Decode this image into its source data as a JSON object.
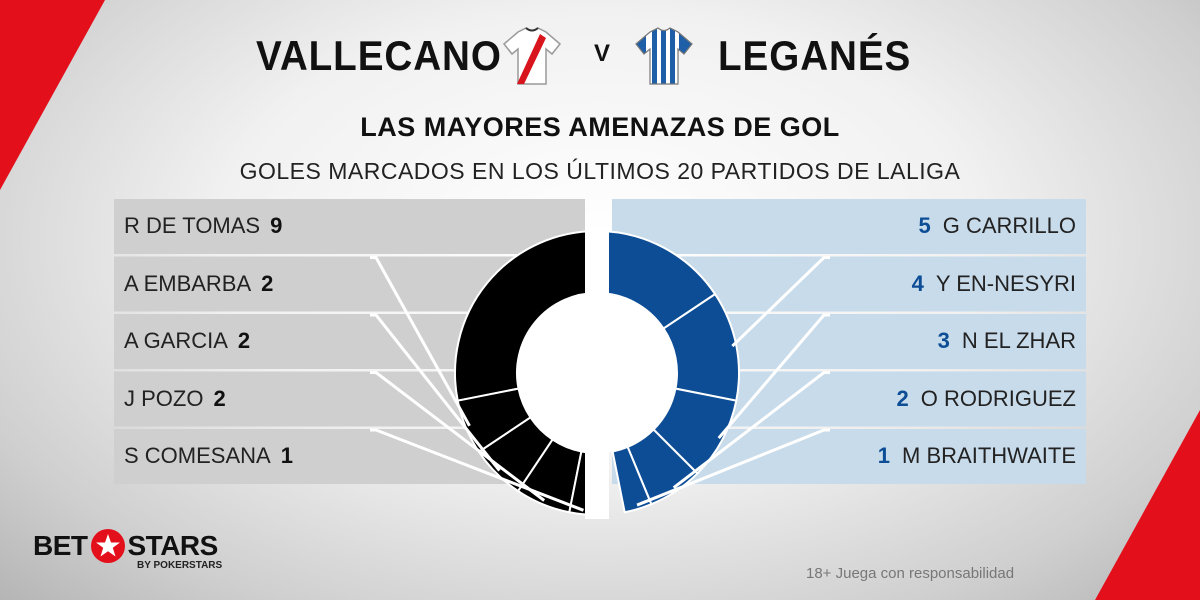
{
  "match": {
    "home_team": "VALLECANO",
    "vs": "V",
    "away_team": "LEGANÉS"
  },
  "title": "LAS MAYORES AMENAZAS DE GOL",
  "subtitle": "GOLES MARCADOS EN LOS ÚLTIMOS 20 PARTIDOS DE LALIGA",
  "brand": {
    "left": "BET",
    "right": "STARS",
    "sub": "BY POKERSTARS"
  },
  "footer_note": "18+ Juega con responsabilidad",
  "colors": {
    "accent_red": "#e3101c",
    "home_series": "#000000",
    "away_series": "#0d4d96",
    "home_panel": "#cfcfcf",
    "away_panel": "#c8dbea",
    "remaining_segment": "#e9e9e9"
  },
  "chart_data": [
    {
      "type": "pie",
      "name": "VALLECANO",
      "categories": [
        "R DE TOMAS",
        "A EMBARBA",
        "A GARCIA",
        "J POZO",
        "S COMESANA"
      ],
      "values": [
        9,
        2,
        2,
        2,
        1
      ]
    },
    {
      "type": "pie",
      "name": "LEGANÉS",
      "categories": [
        "G CARRILLO",
        "Y EN-NESYRI",
        "N EL ZHAR",
        "O RODRIGUEZ",
        "M BRAITHWAITE"
      ],
      "values": [
        5,
        4,
        3,
        2,
        1
      ]
    }
  ]
}
